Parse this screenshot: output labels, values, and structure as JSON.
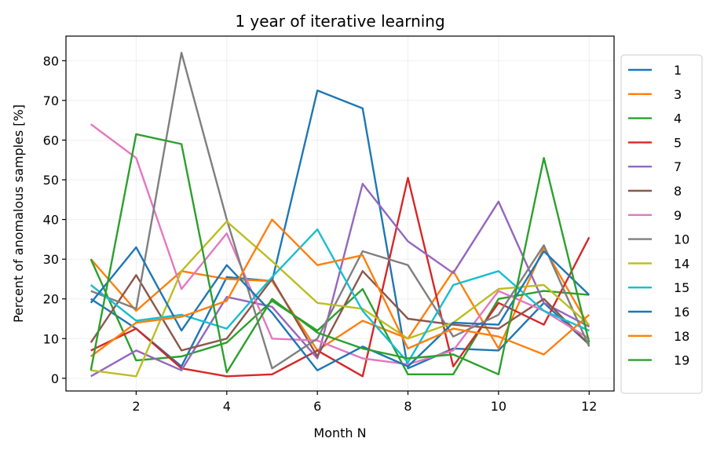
{
  "chart_data": {
    "type": "line",
    "title": "1 year of iterative learning",
    "xlabel": "Month N",
    "ylabel": "Percent of anomalous samples [%]",
    "x": [
      1,
      2,
      3,
      4,
      5,
      6,
      7,
      8,
      9,
      10,
      11,
      12
    ],
    "xlim": [
      0.45,
      12.55
    ],
    "ylim": [
      -3.2,
      86.2
    ],
    "xticks": [
      2,
      4,
      6,
      8,
      10,
      12
    ],
    "yticks": [
      0,
      10,
      20,
      30,
      40,
      50,
      60,
      70,
      80
    ],
    "grid": true,
    "legend_position": "outside-right",
    "series": [
      {
        "name": "1",
        "color": "#1f77b4",
        "values": [
          20,
          12.5,
          3,
          25.5,
          24.5,
          72.5,
          68,
          2.5,
          7.5,
          7,
          19,
          8.5
        ]
      },
      {
        "name": "3",
        "color": "#ff7f0e",
        "values": [
          30,
          17,
          27,
          25,
          24.5,
          7,
          14.5,
          10,
          27,
          7.5,
          33,
          13
        ]
      },
      {
        "name": "4",
        "color": "#2ca02c",
        "values": [
          30,
          4.5,
          5.5,
          9,
          19.5,
          12,
          22.5,
          1,
          1,
          20,
          22,
          21
        ]
      },
      {
        "name": "5",
        "color": "#d62728",
        "values": [
          7,
          12.5,
          2.5,
          0.5,
          1,
          7,
          0.5,
          50.5,
          3,
          19,
          13.5,
          35.5
        ]
      },
      {
        "name": "7",
        "color": "#9467bd",
        "values": [
          0.5,
          7,
          2,
          20.5,
          18,
          5,
          49,
          34.5,
          26.5,
          44.5,
          19,
          13
        ]
      },
      {
        "name": "8",
        "color": "#8c564b",
        "values": [
          9,
          26,
          7,
          10,
          25,
          5.5,
          27,
          15,
          13.5,
          12.5,
          20,
          8.5
        ]
      },
      {
        "name": "9",
        "color": "#e377c2",
        "values": [
          64,
          55.5,
          22.5,
          36.5,
          10,
          9.5,
          5,
          3.5,
          7,
          22,
          17,
          10
        ]
      },
      {
        "name": "10",
        "color": "#7f7f7f",
        "values": [
          22,
          17.5,
          82,
          40,
          2.5,
          10,
          32,
          28.5,
          10.5,
          16,
          33.5,
          8
        ]
      },
      {
        "name": "14",
        "color": "#bcbd22",
        "values": [
          2,
          0.5,
          27,
          39.5,
          29.5,
          19,
          17.5,
          10,
          14,
          22.5,
          23.5,
          13.5
        ]
      },
      {
        "name": "15",
        "color": "#17becf",
        "values": [
          23.5,
          14.5,
          16,
          12.5,
          25.5,
          37.5,
          17,
          4,
          23.5,
          27,
          17,
          12
        ]
      },
      {
        "name": "16",
        "color": "#1f77b4",
        "values": [
          19,
          33,
          12,
          28.5,
          16.5,
          2,
          8,
          3,
          14,
          13.5,
          32,
          21
        ]
      },
      {
        "name": "18",
        "color": "#ff7f0e",
        "values": [
          5.5,
          14,
          15.5,
          19.5,
          40,
          28.5,
          31,
          7.5,
          12.5,
          10.5,
          6,
          16
        ]
      },
      {
        "name": "19",
        "color": "#2ca02c",
        "values": [
          2,
          61.5,
          59,
          1.5,
          20,
          11.5,
          7.5,
          5,
          6,
          1,
          55.5,
          9
        ]
      }
    ]
  }
}
